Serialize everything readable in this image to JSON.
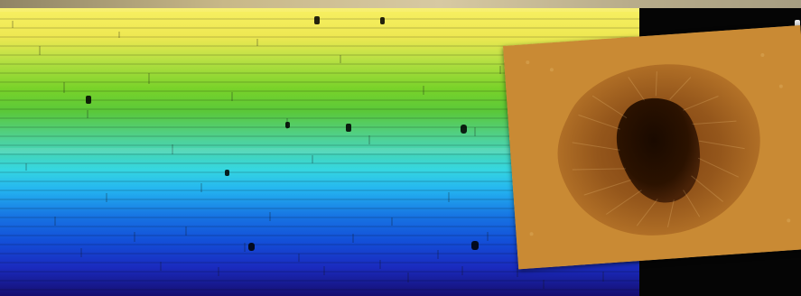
{
  "scene": {
    "subject": "sunspot-spectrum",
    "colors": {
      "yellow": "#f7ef62",
      "green": "#5ac83a",
      "cyan": "#36d7e0",
      "blue": "#1775e3",
      "deep_blue": "#150e6f",
      "photo_orange": "#c6842e",
      "photo_dark": "#2b1200"
    }
  }
}
